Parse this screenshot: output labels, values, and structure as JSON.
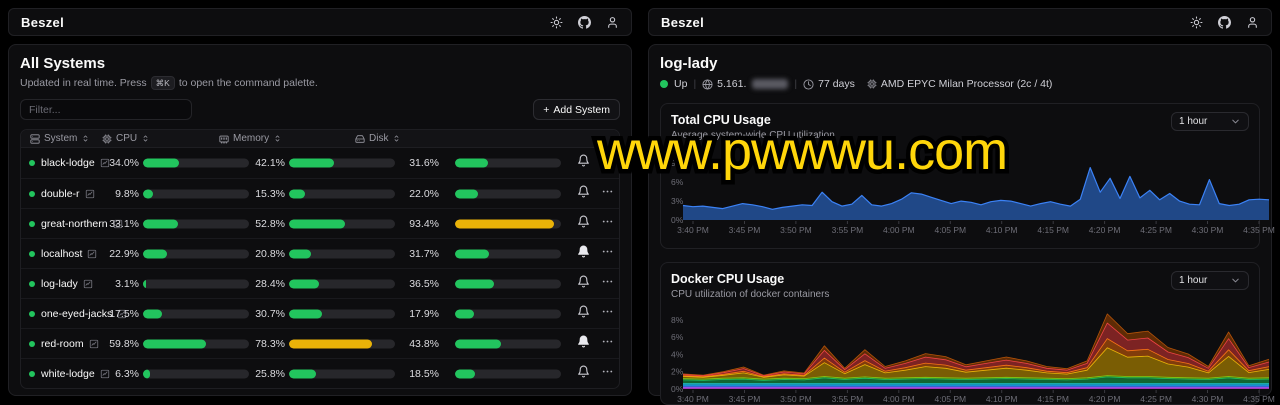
{
  "watermark": "www.pwwwu.com",
  "brand": "Beszel",
  "header_icons": [
    {
      "name": "theme-toggle-icon"
    },
    {
      "name": "github-icon"
    },
    {
      "name": "user-icon"
    }
  ],
  "left": {
    "title": "All Systems",
    "subtitle": {
      "prefix": "Updated in real time. Press",
      "kbd": "⌘K",
      "suffix": "to open the command palette."
    },
    "filter_placeholder": "Filter...",
    "add_button_label": "Add System",
    "table": {
      "columns": [
        {
          "key": "system",
          "label": "System"
        },
        {
          "key": "cpu",
          "label": "CPU"
        },
        {
          "key": "memory",
          "label": "Memory"
        },
        {
          "key": "disk",
          "label": "Disk"
        }
      ],
      "warn_threshold": 70,
      "colors": {
        "ok": "#22c55e",
        "warn": "#eab308"
      },
      "systems": [
        {
          "name": "black-lodge",
          "status": "up",
          "cpu": 34.0,
          "memory": 42.1,
          "disk": 31.6,
          "bell": "outline"
        },
        {
          "name": "double-r",
          "status": "up",
          "cpu": 9.8,
          "memory": 15.3,
          "disk": 22.0,
          "bell": "outline"
        },
        {
          "name": "great-northern",
          "status": "up",
          "cpu": 33.1,
          "memory": 52.8,
          "disk": 93.4,
          "bell": "outline"
        },
        {
          "name": "localhost",
          "status": "up",
          "cpu": 22.9,
          "memory": 20.8,
          "disk": 31.7,
          "bell": "filled"
        },
        {
          "name": "log-lady",
          "status": "up",
          "cpu": 3.1,
          "memory": 28.4,
          "disk": 36.5,
          "bell": "outline"
        },
        {
          "name": "one-eyed-jacks",
          "status": "up",
          "cpu": 17.5,
          "memory": 30.7,
          "disk": 17.9,
          "bell": "outline"
        },
        {
          "name": "red-room",
          "status": "up",
          "cpu": 59.8,
          "memory": 78.3,
          "disk": 43.8,
          "bell": "filled"
        },
        {
          "name": "white-lodge",
          "status": "up",
          "cpu": 6.3,
          "memory": 25.8,
          "disk": 18.5,
          "bell": "outline"
        }
      ]
    }
  },
  "right": {
    "title": "log-lady",
    "status": {
      "state": "Up",
      "ip_prefix": "5.161.",
      "ip_redacted": true,
      "uptime": "77 days",
      "cpu_model": "AMD EPYC Milan Processor (2c / 4t)"
    }
  },
  "chart_data": [
    {
      "id": "total-cpu",
      "type": "area",
      "title": "Total CPU Usage",
      "subtitle": "Average system-wide CPU utilization",
      "range_label": "1 hour",
      "color": "#3b82f6",
      "ylim": [
        0,
        9.5
      ],
      "yticks": [
        0,
        3,
        6,
        9
      ],
      "x_labels": [
        "3:40 PM",
        "3:45 PM",
        "3:50 PM",
        "3:55 PM",
        "4:00 PM",
        "4:05 PM",
        "4:10 PM",
        "4:15 PM",
        "4:20 PM",
        "4:25 PM",
        "4:30 PM",
        "4:35 PM"
      ],
      "values": [
        2.3,
        2.1,
        2.2,
        2.0,
        1.8,
        2.2,
        2.6,
        2.4,
        2.1,
        1.7,
        2.0,
        2.2,
        2.4,
        2.3,
        4.4,
        2.9,
        2.2,
        2.5,
        3.9,
        2.4,
        2.2,
        2.6,
        3.3,
        4.3,
        4.1,
        3.6,
        3.1,
        2.6,
        3.0,
        2.8,
        2.4,
        2.9,
        3.1,
        3.0,
        2.6,
        2.2,
        2.6,
        2.9,
        2.5,
        2.2,
        3.3,
        8.3,
        4.4,
        6.6,
        3.4,
        6.9,
        3.5,
        4.7,
        3.2,
        4.2,
        3.0,
        2.5,
        2.4,
        6.4,
        2.6,
        2.3,
        2.5,
        3.2,
        3.3,
        3.2
      ]
    },
    {
      "id": "docker-cpu",
      "type": "stacked-area",
      "title": "Docker CPU Usage",
      "subtitle": "CPU utilization of docker containers",
      "range_label": "1 hour",
      "ylim": [
        0,
        8.8
      ],
      "yticks": [
        0,
        2,
        4,
        6,
        8
      ],
      "x_labels": [
        "3:40 PM",
        "3:45 PM",
        "3:50 PM",
        "3:55 PM",
        "4:00 PM",
        "4:05 PM",
        "4:10 PM",
        "4:15 PM",
        "4:20 PM",
        "4:25 PM",
        "4:30 PM",
        "4:35 PM"
      ],
      "series": [
        {
          "color": "#d946ef",
          "value": 0.1
        },
        {
          "color": "#8b5cf6",
          "value": 0.1
        },
        {
          "color": "#3b82f6",
          "value": 0.14
        },
        {
          "color": "#0ea5e9",
          "value": 0.1
        },
        {
          "color": "#22d3ee",
          "value": 0.16
        },
        {
          "color": "#22c55e",
          "values": [
            0.45,
            0.4,
            0.5,
            0.55,
            0.4,
            0.5,
            0.45,
            0.7,
            0.5,
            0.65,
            0.5,
            0.55,
            0.6,
            0.55,
            0.5,
            0.55,
            0.6,
            0.55,
            0.5,
            0.45,
            0.55,
            0.8,
            0.7,
            0.7,
            0.6,
            0.55,
            0.5,
            0.7,
            0.5,
            0.55
          ]
        },
        {
          "color": "#84cc16",
          "value": 0.15
        },
        {
          "color": "#eab308",
          "values": [
            0.25,
            0.2,
            0.34,
            0.56,
            0.2,
            0.38,
            0.29,
            1.6,
            0.52,
            1.42,
            0.61,
            0.88,
            1.24,
            1.1,
            0.7,
            0.88,
            1.06,
            0.88,
            0.61,
            0.52,
            0.88,
            3.22,
            2.23,
            2.36,
            1.55,
            1.24,
            0.61,
            2.32,
            0.65,
            0.97
          ]
        },
        {
          "color": "#f97316",
          "values": [
            0.08,
            0.07,
            0.11,
            0.19,
            0.07,
            0.13,
            0.1,
            0.53,
            0.17,
            0.47,
            0.2,
            0.29,
            0.41,
            0.37,
            0.23,
            0.29,
            0.35,
            0.29,
            0.2,
            0.17,
            0.29,
            1.07,
            0.74,
            0.79,
            0.52,
            0.41,
            0.2,
            0.77,
            0.22,
            0.32
          ]
        },
        {
          "color": "#ef4444",
          "values": [
            0.14,
            0.11,
            0.19,
            0.31,
            0.11,
            0.21,
            0.16,
            0.89,
            0.29,
            0.79,
            0.34,
            0.49,
            0.69,
            0.61,
            0.39,
            0.49,
            0.59,
            0.49,
            0.34,
            0.29,
            0.49,
            1.79,
            1.24,
            1.31,
            0.86,
            0.69,
            0.34,
            1.29,
            0.36,
            0.54
          ]
        },
        {
          "color": "#b45309",
          "values": [
            0.08,
            0.07,
            0.11,
            0.19,
            0.07,
            0.13,
            0.1,
            0.53,
            0.17,
            0.47,
            0.2,
            0.29,
            0.41,
            0.37,
            0.23,
            0.29,
            0.35,
            0.29,
            0.2,
            0.17,
            0.29,
            1.07,
            0.74,
            0.79,
            0.52,
            0.41,
            0.2,
            0.77,
            0.22,
            0.32
          ]
        }
      ]
    }
  ]
}
